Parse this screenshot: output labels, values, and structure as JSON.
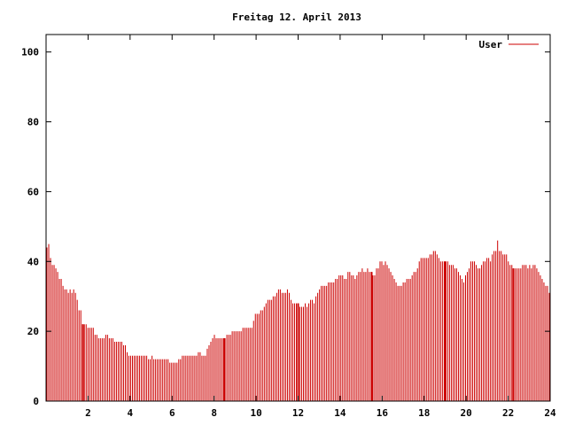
{
  "chart_data": {
    "type": "bar",
    "title": "Freitag 12. April 2013",
    "xlabel": "",
    "ylabel": "",
    "xlim": [
      0,
      24
    ],
    "ylim": [
      0,
      105
    ],
    "xticks": [
      "2",
      "4",
      "6",
      "8",
      "10",
      "12",
      "14",
      "16",
      "18",
      "20",
      "22",
      "24"
    ],
    "yticks": [
      "0",
      "20",
      "40",
      "60",
      "80",
      "100"
    ],
    "legend": "top-right",
    "grid": false,
    "bar_color": "#cc0000",
    "series": [
      {
        "name": "User",
        "values": [
          44,
          45,
          41,
          39,
          39,
          38,
          37,
          35,
          35,
          33,
          32,
          32,
          31,
          32,
          31,
          32,
          31,
          29,
          26,
          26,
          22,
          22,
          22,
          21,
          21,
          21,
          21,
          19,
          19,
          18,
          18,
          18,
          18,
          19,
          19,
          18,
          18,
          18,
          17,
          17,
          17,
          17,
          17,
          16,
          16,
          14,
          13,
          13,
          13,
          13,
          13,
          13,
          13,
          13,
          13,
          13,
          13,
          12,
          12,
          13,
          12,
          12,
          12,
          12,
          12,
          12,
          12,
          12,
          12,
          11,
          11,
          11,
          11,
          11,
          12,
          12,
          13,
          13,
          13,
          13,
          13,
          13,
          13,
          13,
          13,
          14,
          14,
          13,
          13,
          13,
          15,
          16,
          17,
          18,
          19,
          18,
          18,
          18,
          18,
          18,
          18,
          19,
          19,
          19,
          20,
          20,
          20,
          20,
          20,
          20,
          21,
          21,
          21,
          21,
          21,
          21,
          23,
          25,
          25,
          25,
          26,
          26,
          27,
          28,
          29,
          29,
          29,
          30,
          30,
          31,
          32,
          32,
          31,
          31,
          31,
          32,
          31,
          29,
          28,
          28,
          28,
          28,
          27,
          27,
          27,
          28,
          27,
          28,
          29,
          29,
          28,
          30,
          31,
          32,
          33,
          33,
          33,
          33,
          34,
          34,
          34,
          34,
          35,
          35,
          36,
          36,
          36,
          35,
          35,
          37,
          37,
          36,
          36,
          35,
          36,
          37,
          37,
          38,
          37,
          37,
          38,
          37,
          37,
          36,
          36,
          38,
          38,
          40,
          40,
          39,
          40,
          39,
          38,
          37,
          36,
          35,
          34,
          33,
          33,
          33,
          34,
          34,
          35,
          35,
          35,
          36,
          37,
          37,
          38,
          40,
          41,
          41,
          41,
          41,
          41,
          42,
          42,
          43,
          43,
          42,
          41,
          40,
          40,
          40,
          40,
          40,
          39,
          39,
          39,
          38,
          38,
          37,
          36,
          35,
          34,
          36,
          37,
          38,
          40,
          40,
          40,
          39,
          38,
          38,
          39,
          40,
          40,
          41,
          41,
          40,
          42,
          43,
          43,
          46,
          43,
          43,
          42,
          42,
          42,
          40,
          39,
          39,
          38,
          38,
          38,
          38,
          38,
          39,
          39,
          39,
          38,
          39,
          38,
          39,
          39,
          38,
          37,
          36,
          35,
          34,
          33,
          33,
          31
        ],
        "highlight_hours": [
          1.75,
          8.5,
          12,
          15.5,
          19,
          22.25
        ]
      }
    ]
  }
}
